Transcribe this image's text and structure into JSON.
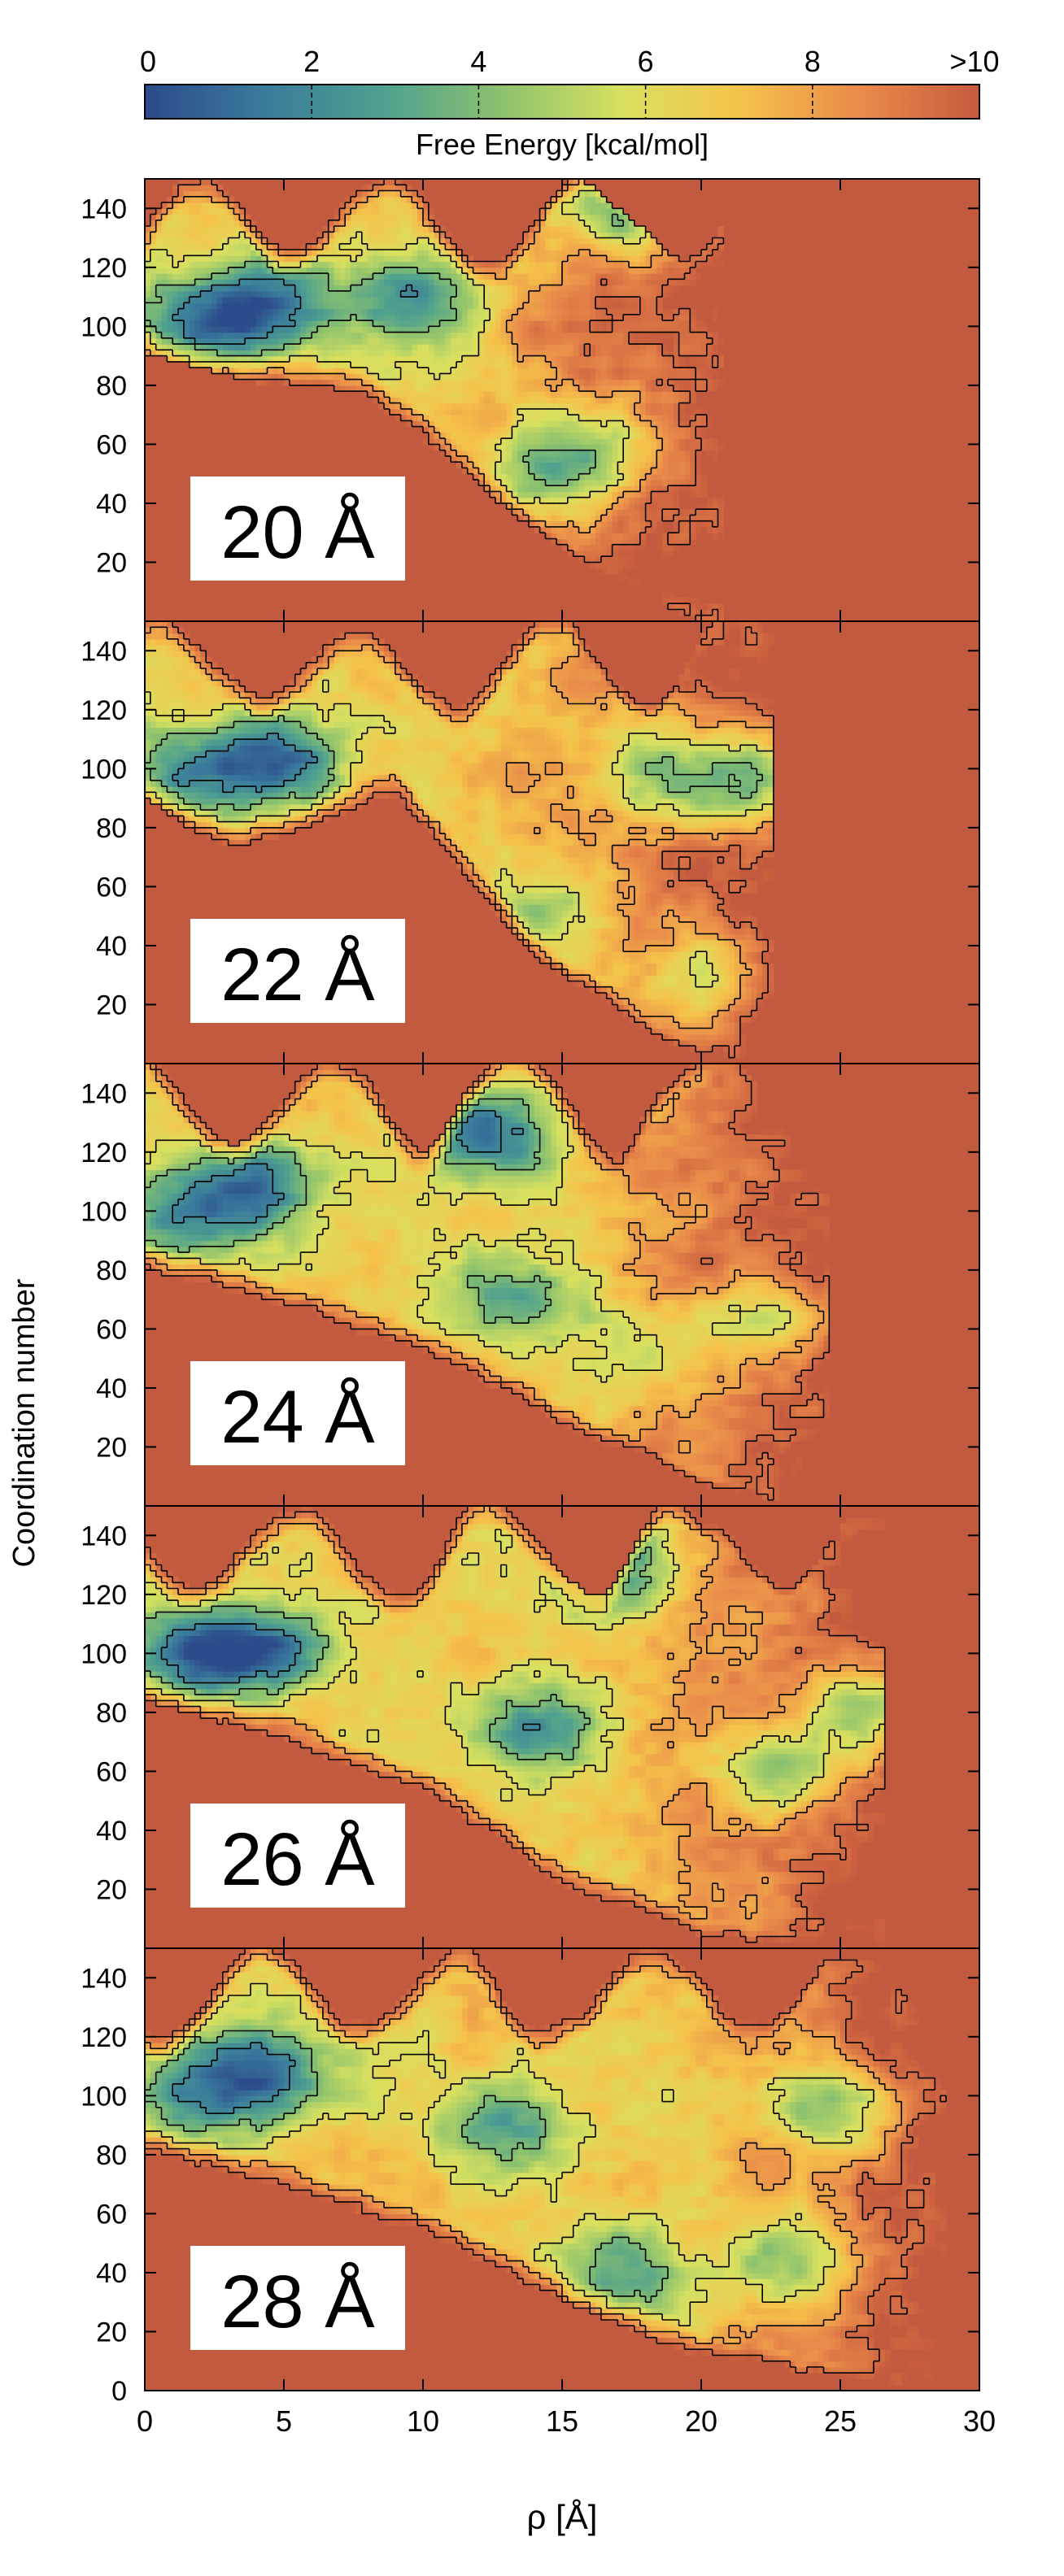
{
  "chart_data": {
    "type": "heatmap",
    "description_units": {
      "xlabel": "ρ [Å]",
      "ylabel": "Coordination number",
      "colorbar_label": "Free Energy [kcal/mol]"
    },
    "xlim": [
      0,
      30
    ],
    "ylim": [
      0,
      150
    ],
    "x_ticks": [
      0,
      5,
      10,
      15,
      20,
      25,
      30
    ],
    "y_ticks": [
      20,
      40,
      60,
      80,
      100,
      120,
      140
    ],
    "y_ticks_bottom_panel": [
      0,
      20,
      40,
      60,
      80,
      100,
      120,
      140
    ],
    "colorbar": {
      "ticks": [
        "0",
        "2",
        "4",
        "6",
        "8",
        ">10"
      ],
      "range": [
        0,
        10
      ],
      "colors": [
        "#2b4b8a",
        "#3a7a9c",
        "#4fa08f",
        "#8cc26e",
        "#d8e060",
        "#f5c24a",
        "#e98a4a",
        "#c65a3e"
      ]
    },
    "background_color": "#c25a40",
    "contour_color": "#000000",
    "panels": [
      {
        "label": "20 Å",
        "x_extent": 20.8,
        "minima": [
          {
            "x": 1.8,
            "y": 100,
            "depth": 1.2
          },
          {
            "x": 4.3,
            "y": 108,
            "depth": 0.8
          },
          {
            "x": 9.5,
            "y": 110,
            "depth": 0.9
          },
          {
            "x": 17.5,
            "y": 140,
            "depth": 0.5
          },
          {
            "x": 16.5,
            "y": 60,
            "depth": 2.6
          },
          {
            "x": 14.5,
            "y": 50,
            "depth": 3.0
          }
        ],
        "ridge": [
          [
            0,
            95
          ],
          [
            4,
            85
          ],
          [
            8,
            80
          ],
          [
            12,
            50
          ],
          [
            16,
            20
          ],
          [
            20.5,
            2
          ]
        ]
      },
      {
        "label": "22 Å",
        "x_extent": 22.6,
        "minima": [
          {
            "x": 1.5,
            "y": 98,
            "depth": 1.2
          },
          {
            "x": 4.8,
            "y": 104,
            "depth": 0.6
          },
          {
            "x": 21.8,
            "y": 96,
            "depth": 0.4
          },
          {
            "x": 18.5,
            "y": 100,
            "depth": 2.0
          },
          {
            "x": 20.0,
            "y": 30,
            "depth": 3.2
          },
          {
            "x": 15.0,
            "y": 55,
            "depth": 3.6
          }
        ],
        "ridge": [
          [
            0,
            95
          ],
          [
            3,
            75
          ],
          [
            9,
            95
          ],
          [
            14,
            40
          ],
          [
            19,
            10
          ],
          [
            22.5,
            2
          ]
        ]
      },
      {
        "label": "24 Å",
        "x_extent": 24.5,
        "minima": [
          {
            "x": 1.2,
            "y": 98,
            "depth": 1.3
          },
          {
            "x": 4.2,
            "y": 108,
            "depth": 1.0
          },
          {
            "x": 12.3,
            "y": 125,
            "depth": 0.7
          },
          {
            "x": 13.0,
            "y": 70,
            "depth": 2.6
          },
          {
            "x": 22.5,
            "y": 60,
            "depth": 2.4
          },
          {
            "x": 17.5,
            "y": 50,
            "depth": 3.2
          }
        ],
        "ridge": [
          [
            0,
            85
          ],
          [
            5,
            70
          ],
          [
            10,
            55
          ],
          [
            15,
            30
          ],
          [
            20,
            10
          ],
          [
            24.5,
            2
          ]
        ]
      },
      {
        "label": "26 Å",
        "x_extent": 26.6,
        "minima": [
          {
            "x": 1.5,
            "y": 100,
            "depth": 1.5
          },
          {
            "x": 4.3,
            "y": 102,
            "depth": 0.8
          },
          {
            "x": 14.0,
            "y": 75,
            "depth": 1.4
          },
          {
            "x": 16.5,
            "y": 130,
            "depth": 1.8
          },
          {
            "x": 23.0,
            "y": 60,
            "depth": 1.2
          },
          {
            "x": 26.0,
            "y": 82,
            "depth": 0.7
          }
        ],
        "ridge": [
          [
            0,
            88
          ],
          [
            5,
            75
          ],
          [
            10,
            55
          ],
          [
            15,
            25
          ],
          [
            20,
            8
          ],
          [
            26.5,
            2
          ]
        ]
      },
      {
        "label": "28 Å",
        "x_extent": 28.8,
        "minima": [
          {
            "x": 1.8,
            "y": 100,
            "depth": 1.6
          },
          {
            "x": 4.5,
            "y": 108,
            "depth": 1.0
          },
          {
            "x": 12.5,
            "y": 90,
            "depth": 2.0
          },
          {
            "x": 24.5,
            "y": 95,
            "depth": 1.6
          },
          {
            "x": 23.0,
            "y": 45,
            "depth": 2.0
          },
          {
            "x": 17.0,
            "y": 40,
            "depth": 2.8
          }
        ],
        "ridge": [
          [
            0,
            85
          ],
          [
            5,
            72
          ],
          [
            10,
            55
          ],
          [
            15,
            35
          ],
          [
            20,
            15
          ],
          [
            28.5,
            3
          ]
        ]
      }
    ]
  }
}
